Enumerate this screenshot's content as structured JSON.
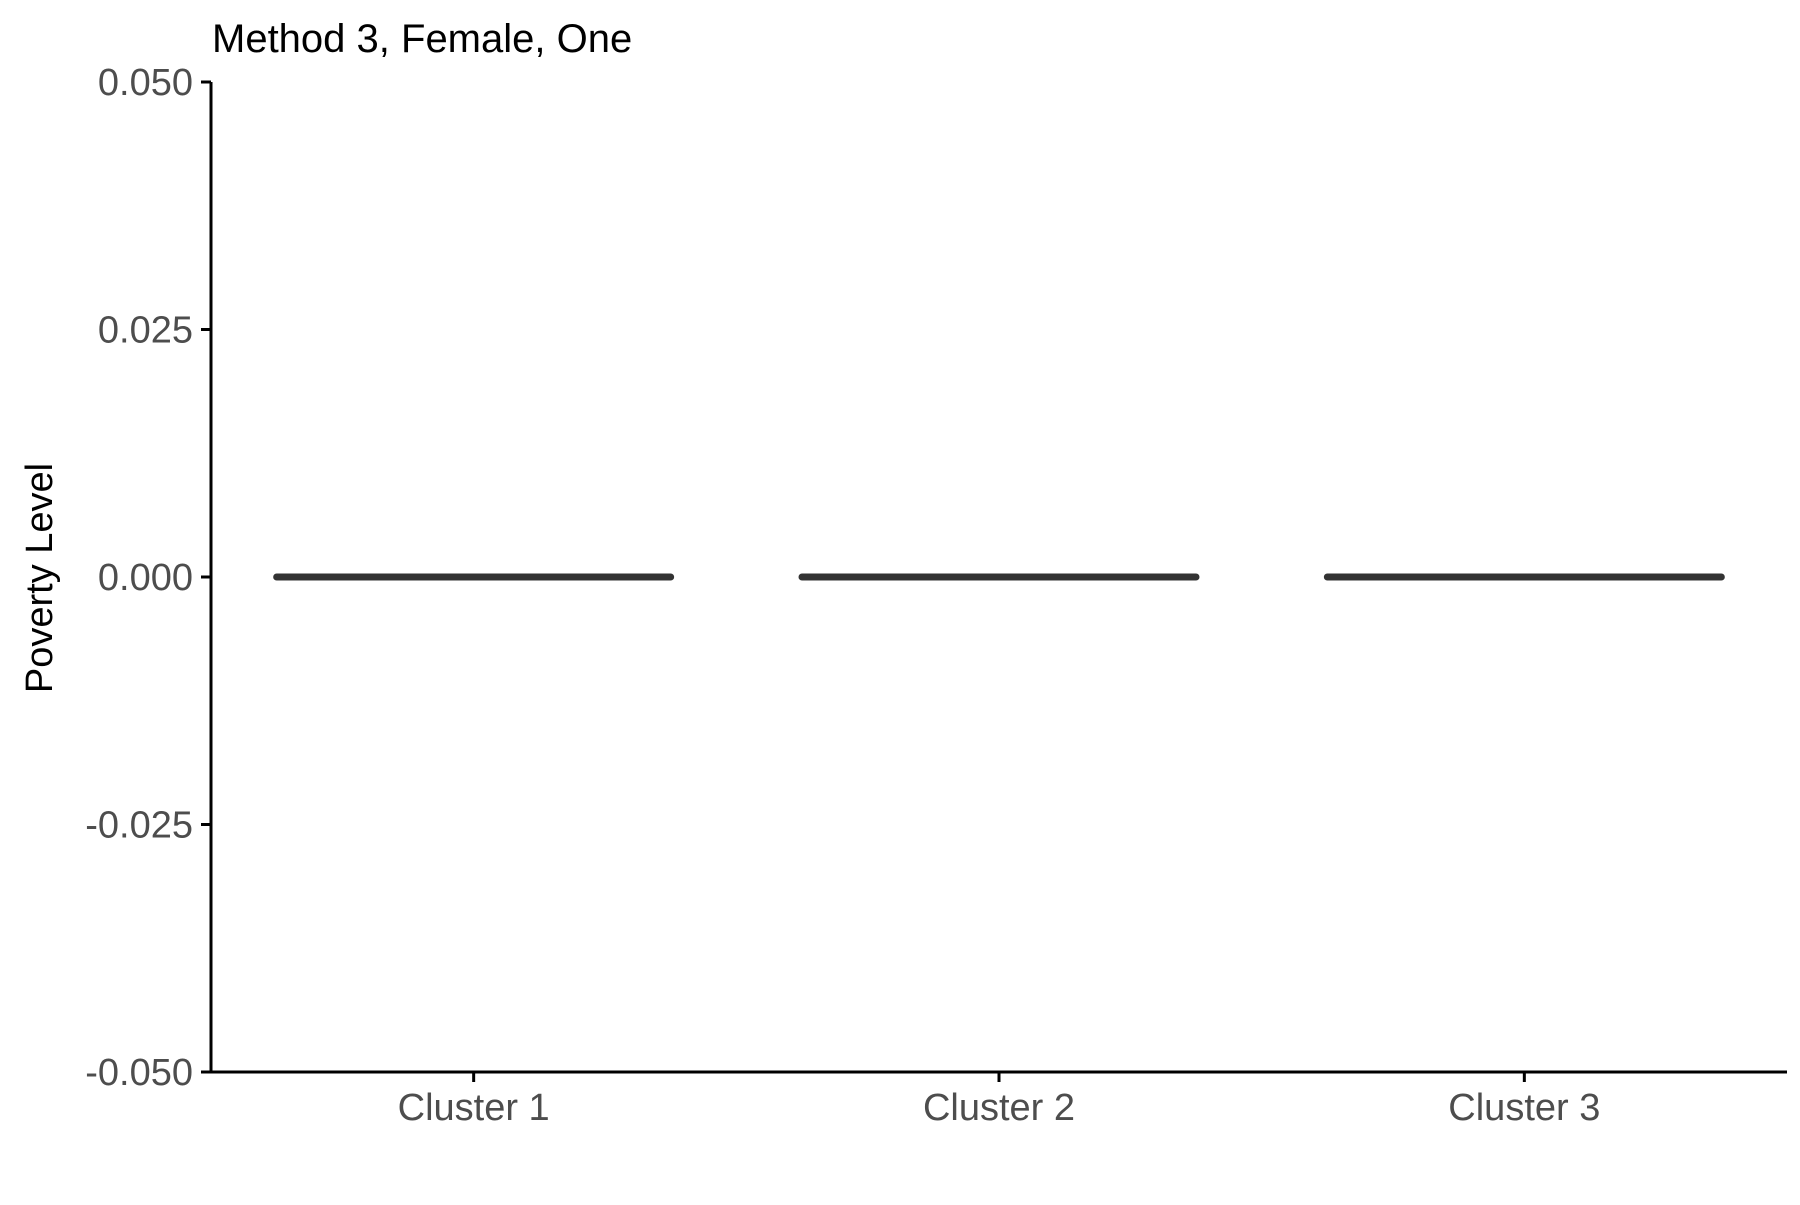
{
  "chart_data": {
    "type": "boxplot",
    "title": "Method 3, Female, One",
    "xlabel": "",
    "ylabel": "Poverty Level",
    "categories": [
      "Cluster 1",
      "Cluster 2",
      "Cluster 3"
    ],
    "values": [
      0.0,
      0.0,
      0.0
    ],
    "ylim": [
      -0.05,
      0.05
    ],
    "yticks": [
      -0.05,
      -0.025,
      0.0,
      0.025,
      0.05
    ],
    "ytick_labels": [
      "-0.050",
      "-0.025",
      "0.000",
      "0.025",
      "0.050"
    ],
    "grid": false,
    "legend": "none",
    "colors": {
      "mark": "#333333",
      "axis": "#000000",
      "tick_text": "#4d4d4d",
      "background": "#ffffff"
    }
  }
}
